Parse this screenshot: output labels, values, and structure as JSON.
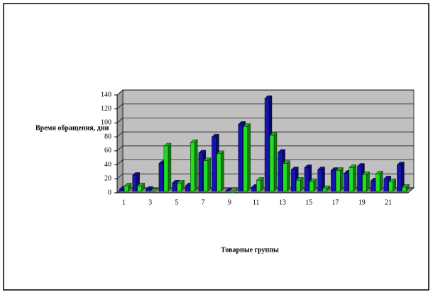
{
  "chart_data": {
    "type": "bar3d",
    "y_label": "Время обращения, дни",
    "x_label": "Товарные группы",
    "categories": [
      "1",
      null,
      "3",
      null,
      "5",
      null,
      "7",
      null,
      "9",
      null,
      "11",
      null,
      "13",
      null,
      "15",
      null,
      "17",
      null,
      "19",
      null,
      "21",
      null
    ],
    "series": [
      {
        "color": "#1414b4",
        "values": [
          5,
          25,
          5,
          42,
          14,
          10,
          57,
          80,
          2,
          98,
          8,
          135,
          58,
          33,
          36,
          33,
          32,
          28,
          38,
          17,
          20,
          40
        ]
      },
      {
        "color": "#22dd22",
        "values": [
          10,
          10,
          2,
          67,
          14,
          72,
          46,
          56,
          0,
          95,
          18,
          82,
          42,
          18,
          16,
          6,
          32,
          36,
          26,
          27,
          16,
          8
        ]
      }
    ],
    "ylim": [
      0,
      140
    ],
    "yticks": [
      0,
      20,
      40,
      60,
      80,
      100,
      120,
      140
    ],
    "grid": true
  }
}
